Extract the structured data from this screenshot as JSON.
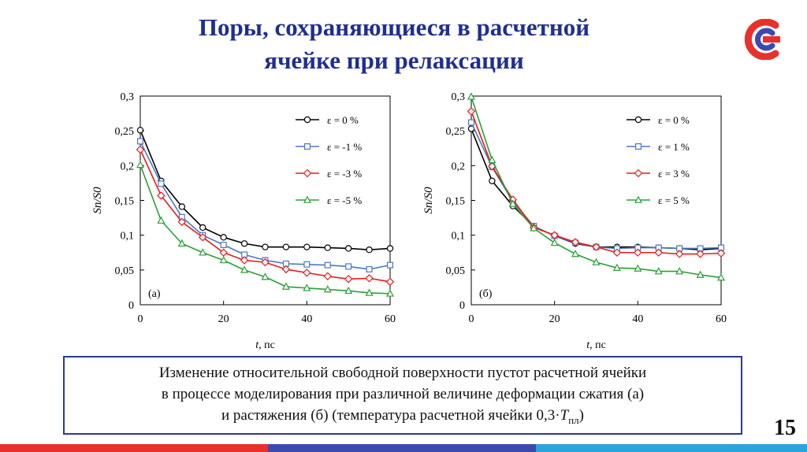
{
  "title": {
    "line1": "Поры, сохраняющиеся в расчетной",
    "line2": "ячейке при релаксации"
  },
  "caption": {
    "line1": "Изменение относительной свободной поверхности пустот расчетной ячейки",
    "line2": "в процессе моделирования при различной величине деформации сжатия (а)",
    "line3_prefix": "и растяжения (б) (температура расчетной ячейки 0,3·",
    "line3_var": "T",
    "line3_sub": "пл",
    "line3_suffix": ")"
  },
  "page_number": "15",
  "logo": {
    "icon": "brand-logo-icon",
    "colors": [
      "#e8302c",
      "#3c4ab0"
    ]
  },
  "bottom_bar_colors": [
    "#e8302c",
    "#3c4ab0",
    "#2aa5dc"
  ],
  "chart_data": [
    {
      "type": "line",
      "panel_label": "(а)",
      "xlabel_var": "t",
      "xlabel_unit": ", пс",
      "ylabel": "Sп/S0",
      "xlim": [
        0,
        60
      ],
      "ylim": [
        0,
        0.3
      ],
      "xticks": [
        "0",
        "20",
        "40",
        "60"
      ],
      "yticks": [
        "0",
        "0,05",
        "0,1",
        "0,15",
        "0,2",
        "0,25",
        "0,3"
      ],
      "grid": false,
      "legend_position": "top-right",
      "x": [
        0,
        5,
        10,
        15,
        20,
        25,
        30,
        35,
        40,
        45,
        50,
        55,
        60
      ],
      "series": [
        {
          "name": "ε = 0 %",
          "color": "#000000",
          "marker": "circle",
          "values": [
            0.251,
            0.178,
            0.141,
            0.111,
            0.097,
            0.088,
            0.083,
            0.083,
            0.083,
            0.082,
            0.081,
            0.079,
            0.081
          ]
        },
        {
          "name": "ε = -1 %",
          "color": "#4a78c4",
          "marker": "square",
          "values": [
            0.235,
            0.174,
            0.126,
            0.1,
            0.086,
            0.072,
            0.064,
            0.059,
            0.058,
            0.057,
            0.055,
            0.051,
            0.057
          ]
        },
        {
          "name": "ε = -3 %",
          "color": "#e81c1c",
          "marker": "diamond",
          "values": [
            0.223,
            0.157,
            0.119,
            0.097,
            0.075,
            0.064,
            0.061,
            0.051,
            0.046,
            0.041,
            0.037,
            0.038,
            0.033
          ]
        },
        {
          "name": "ε = -5 %",
          "color": "#2aa038",
          "marker": "triangle",
          "values": [
            0.201,
            0.121,
            0.088,
            0.075,
            0.064,
            0.05,
            0.04,
            0.026,
            0.024,
            0.022,
            0.02,
            0.017,
            0.016
          ]
        }
      ]
    },
    {
      "type": "line",
      "panel_label": "(б)",
      "xlabel_var": "t",
      "xlabel_unit": ", пс",
      "ylabel": "Sп/S0",
      "xlim": [
        0,
        60
      ],
      "ylim": [
        0,
        0.3
      ],
      "xticks": [
        "0",
        "20",
        "40",
        "60"
      ],
      "yticks": [
        "0",
        "0,05",
        "0,1",
        "0,15",
        "0,2",
        "0,25",
        "0,3"
      ],
      "grid": false,
      "legend_position": "top-right",
      "x": [
        0,
        5,
        10,
        15,
        20,
        25,
        30,
        35,
        40,
        45,
        50,
        55,
        60
      ],
      "series": [
        {
          "name": "ε = 0 %",
          "color": "#000000",
          "marker": "circle",
          "values": [
            0.253,
            0.178,
            0.142,
            0.113,
            0.099,
            0.088,
            0.083,
            0.083,
            0.083,
            0.082,
            0.081,
            0.079,
            0.081
          ]
        },
        {
          "name": "ε = 1 %",
          "color": "#4a78c4",
          "marker": "square",
          "values": [
            0.262,
            0.198,
            0.148,
            0.113,
            0.099,
            0.089,
            0.083,
            0.081,
            0.082,
            0.082,
            0.081,
            0.081,
            0.082
          ]
        },
        {
          "name": "ε = 3 %",
          "color": "#e81c1c",
          "marker": "diamond",
          "values": [
            0.278,
            0.199,
            0.151,
            0.111,
            0.1,
            0.09,
            0.083,
            0.075,
            0.075,
            0.075,
            0.073,
            0.073,
            0.074
          ]
        },
        {
          "name": "ε = 5 %",
          "color": "#2aa038",
          "marker": "triangle",
          "values": [
            0.299,
            0.208,
            0.145,
            0.11,
            0.089,
            0.073,
            0.061,
            0.053,
            0.052,
            0.048,
            0.048,
            0.043,
            0.039
          ]
        }
      ]
    }
  ]
}
